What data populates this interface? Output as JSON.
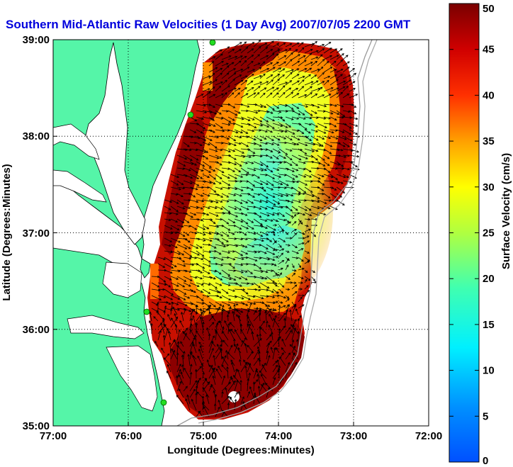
{
  "title": "Southern Mid-Atlantic Raw Velocities (1 Day Avg) 2007/07/05 2200 GMT",
  "colors": {
    "title": "#0000dd",
    "land": "#55f5a8",
    "coast": "#000000",
    "station": "#22dd22",
    "arrows": "#000000",
    "bathymetry": "#999999",
    "grid": "#000000"
  },
  "map": {
    "x_label": "Longitude (Degrees:Minutes)",
    "y_label": "Latitude (Degrees:Minutes)",
    "x_ticks": [
      "77:00",
      "76:00",
      "75:00",
      "74:00",
      "73:00",
      "72:00"
    ],
    "y_ticks": [
      "39:00",
      "38:00",
      "37:00",
      "36:00",
      "35:00"
    ],
    "lon_range": [
      -77,
      -72
    ],
    "lat_range": [
      35,
      39
    ],
    "grid": true
  },
  "colorbar": {
    "label": "Surface Velocity (cm/s)",
    "range": [
      0,
      50
    ],
    "ticks": [
      "50",
      "45",
      "40",
      "35",
      "30",
      "25",
      "20",
      "15",
      "10",
      "5",
      "0"
    ],
    "colormap": "jet"
  }
}
